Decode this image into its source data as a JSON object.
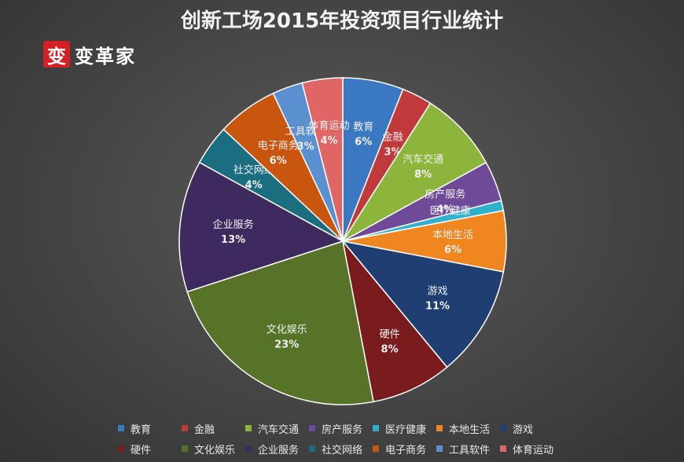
{
  "chart_data": {
    "type": "pie",
    "title": "创新工场2015年投资项目行业统计",
    "slices": [
      {
        "label": "教育",
        "value": 6,
        "percent_label": "6%",
        "color": "#3a78c2"
      },
      {
        "label": "金融",
        "value": 3,
        "percent_label": "3%",
        "color": "#c0393b"
      },
      {
        "label": "汽车交通",
        "value": 8,
        "percent_label": "8%",
        "color": "#8db53c"
      },
      {
        "label": "房产服务",
        "value": 4,
        "percent_label": "4%",
        "color": "#6e4a98"
      },
      {
        "label": "医疗健康",
        "value": 1,
        "percent_label": "1%",
        "color": "#2fb0cc"
      },
      {
        "label": "本地生活",
        "value": 6,
        "percent_label": "6%",
        "color": "#f0861f"
      },
      {
        "label": "游戏",
        "value": 11,
        "percent_label": "11%",
        "color": "#1f3f72"
      },
      {
        "label": "硬件",
        "value": 8,
        "percent_label": "8%",
        "color": "#7a1c1d"
      },
      {
        "label": "文化娱乐",
        "value": 23,
        "percent_label": "23%",
        "color": "#567328"
      },
      {
        "label": "企业服务",
        "value": 13,
        "percent_label": "13%",
        "color": "#3e2a5e"
      },
      {
        "label": "社交网络",
        "value": 4,
        "percent_label": "4%",
        "color": "#1b6d80"
      },
      {
        "label": "电子商务",
        "value": 6,
        "percent_label": "6%",
        "color": "#c9560f"
      },
      {
        "label": "工具软件",
        "value": 3,
        "percent_label": "3%",
        "color": "#5a8fd0"
      },
      {
        "label": "体育运动",
        "value": 4,
        "percent_label": "4%",
        "color": "#e06666"
      }
    ],
    "legend_position": "bottom"
  },
  "logo": {
    "mark": "变",
    "text": "变革家"
  }
}
